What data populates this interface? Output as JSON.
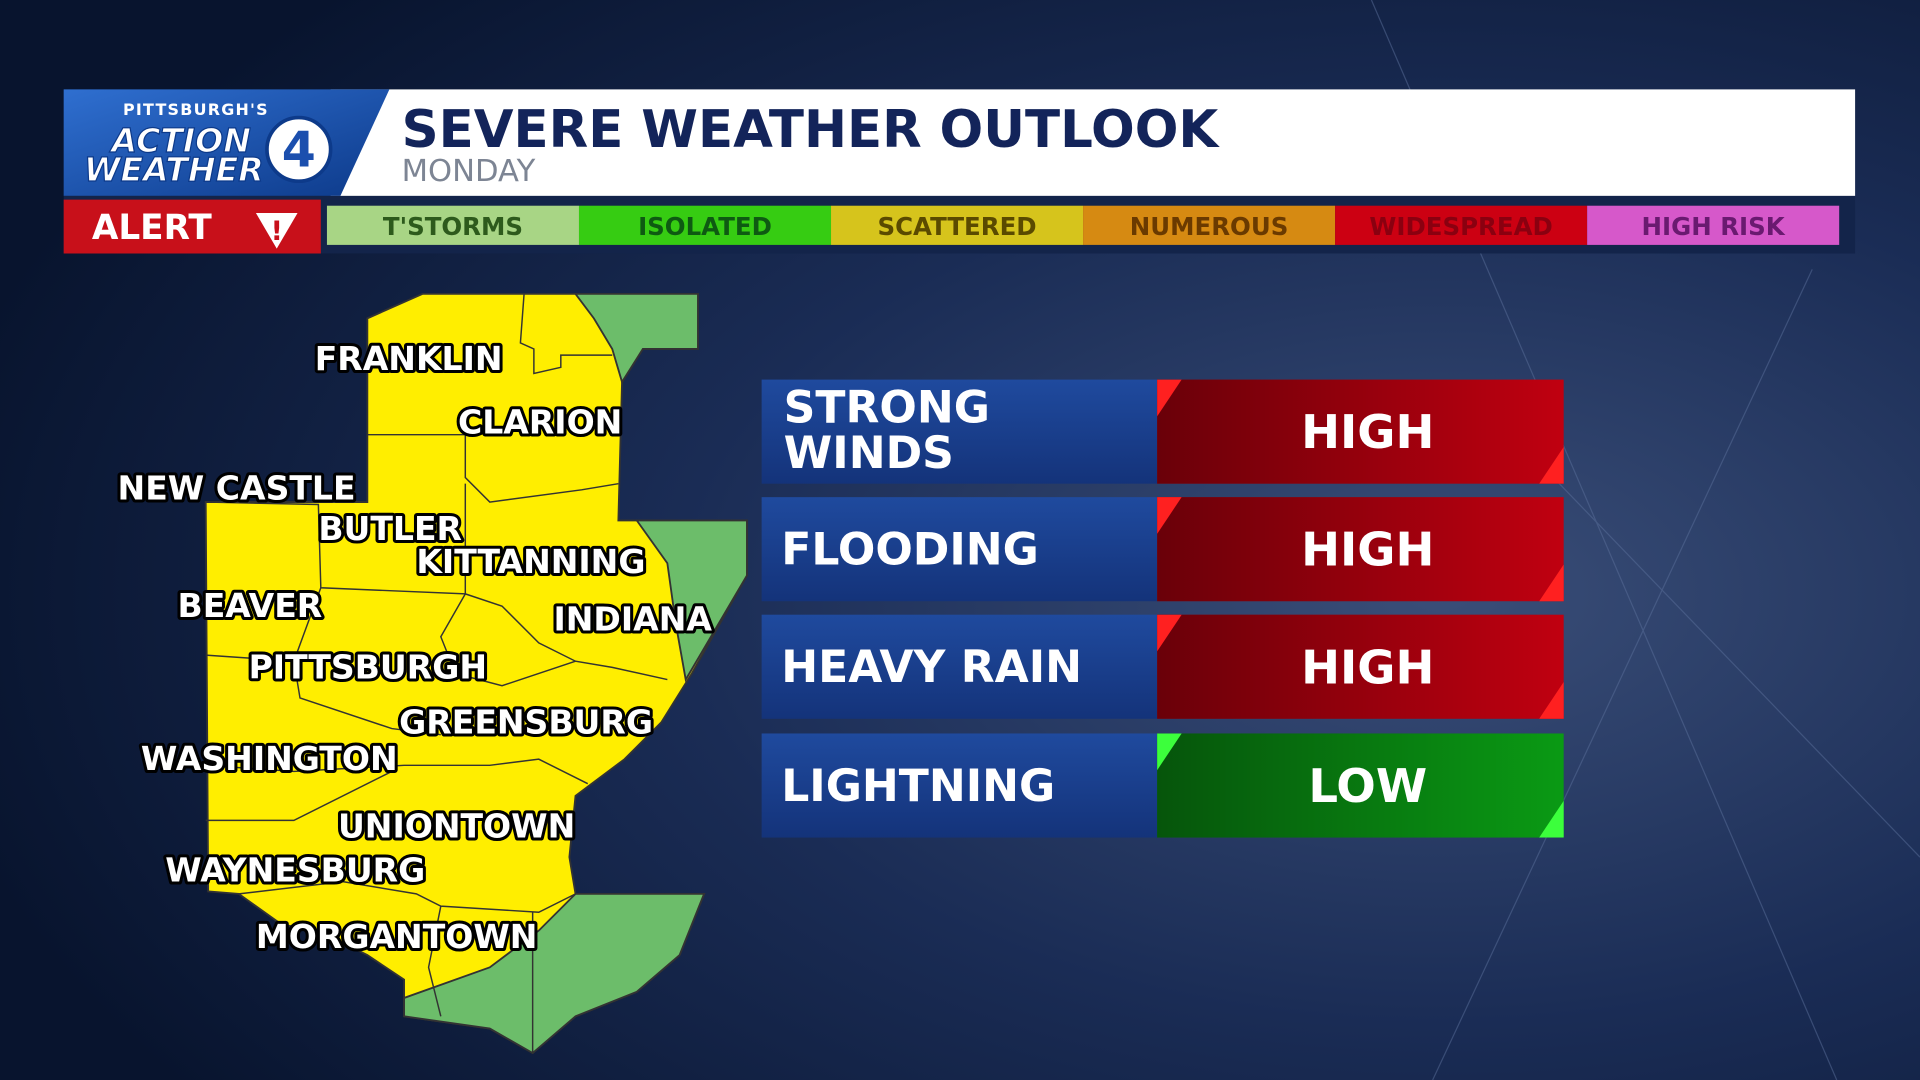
{
  "header": {
    "logo": {
      "top": "PITTSBURGH'S",
      "line1": "ACTION",
      "line2": "WEATHER",
      "number": "4"
    },
    "title": "SEVERE WEATHER OUTLOOK",
    "subtitle": "MONDAY"
  },
  "alert": {
    "label": "ALERT",
    "icon": "!"
  },
  "scale": [
    {
      "label": "T'STORMS",
      "color": "#a8d585",
      "text_color": "#2d5a1c"
    },
    {
      "label": "ISOLATED",
      "color": "#36cc12",
      "text_color": "#0e5a12"
    },
    {
      "label": "SCATTERED",
      "color": "#d6c41c",
      "text_color": "#5a4a00"
    },
    {
      "label": "NUMEROUS",
      "color": "#d68a12",
      "text_color": "#6a3a00"
    },
    {
      "label": "WIDESPREAD",
      "color": "#cc0012",
      "text_color": "#8a0010"
    },
    {
      "label": "HIGH RISK",
      "color": "#d658ca",
      "text_color": "#6a1a70"
    }
  ],
  "map": {
    "labels": [
      "FRANKLIN",
      "CLARION",
      "NEW CASTLE",
      "BUTLER",
      "KITTANNING",
      "BEAVER",
      "INDIANA",
      "PITTSBURGH",
      "GREENSBURG",
      "WASHINGTON",
      "UNIONTOWN",
      "WAYNESBURG",
      "MORGANTOWN"
    ]
  },
  "hazards": [
    {
      "name": "STRONG WINDS",
      "level": "HIGH",
      "color": "#c00010"
    },
    {
      "name": "FLOODING",
      "level": "HIGH",
      "color": "#c00010"
    },
    {
      "name": "HEAVY RAIN",
      "level": "HIGH",
      "color": "#c00010"
    },
    {
      "name": "LIGHTNING",
      "level": "LOW",
      "color": "#0a9a14"
    }
  ]
}
